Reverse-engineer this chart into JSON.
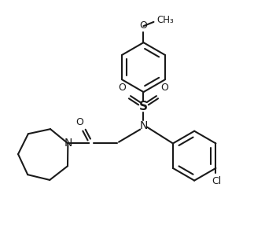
{
  "bg_color": "#ffffff",
  "line_color": "#1a1a1a",
  "figsize": [
    3.51,
    3.18
  ],
  "dpi": 100,
  "xlim": [
    0,
    10
  ],
  "ylim": [
    0,
    9
  ]
}
